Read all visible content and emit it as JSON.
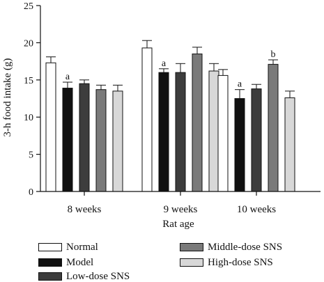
{
  "chart_data": {
    "type": "bar",
    "xlabel": "Rat age",
    "ylabel": "3-h food intake (g)",
    "ylim": [
      0,
      25
    ],
    "yticks": [
      0,
      5,
      10,
      15,
      20,
      25
    ],
    "categories": [
      "8 weeks",
      "9 weeks",
      "10 weeks"
    ],
    "series": [
      {
        "name": "Normal",
        "color": "#ffffff",
        "values": [
          17.3,
          19.3,
          15.6
        ],
        "errors": [
          0.8,
          1.0,
          0.8
        ]
      },
      {
        "name": "Model",
        "color": "#111111",
        "values": [
          13.9,
          16.0,
          12.5
        ],
        "errors": [
          0.8,
          0.5,
          1.2
        ]
      },
      {
        "name": "Low-dose SNS",
        "color": "#3d3d3d",
        "values": [
          14.5,
          16.0,
          13.8
        ],
        "errors": [
          0.5,
          1.2,
          0.6
        ]
      },
      {
        "name": "Middle-dose SNS",
        "color": "#7a7a7a",
        "values": [
          13.7,
          18.5,
          17.1
        ],
        "errors": [
          0.6,
          0.9,
          0.6
        ]
      },
      {
        "name": "High-dose SNS",
        "color": "#d8d8d8",
        "values": [
          13.5,
          16.2,
          12.6
        ],
        "errors": [
          0.8,
          1.0,
          0.9
        ]
      }
    ],
    "annotations": [
      {
        "series": "Model",
        "category": "8 weeks",
        "text": "a"
      },
      {
        "series": "Model",
        "category": "9 weeks",
        "text": "a"
      },
      {
        "series": "Model",
        "category": "10 weeks",
        "text": "a"
      },
      {
        "series": "Middle-dose SNS",
        "category": "10 weeks",
        "text": "b"
      }
    ],
    "legend_position": "bottom"
  }
}
